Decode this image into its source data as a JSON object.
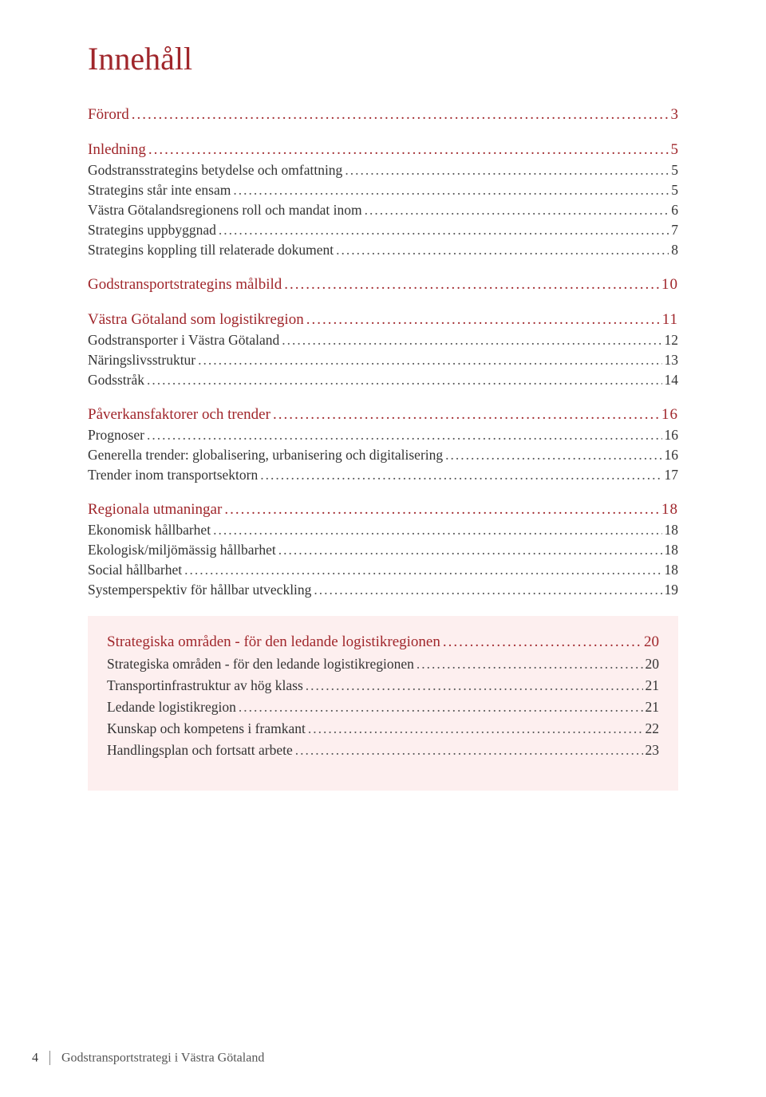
{
  "title": "Innehåll",
  "colors": {
    "accent": "#a0262b",
    "text": "#333333",
    "box_bg": "#fdefef",
    "page_bg": "#ffffff"
  },
  "dots": ".............................................................................................................................................................",
  "toc": [
    {
      "type": "section",
      "label": "Förord",
      "page": "3",
      "group_end": true
    },
    {
      "type": "section",
      "label": "Inledning",
      "page": "5"
    },
    {
      "type": "item",
      "label": "Godstransstrategins betydelse och omfattning",
      "page": "5"
    },
    {
      "type": "item",
      "label": "Strategins står inte ensam",
      "page": "5"
    },
    {
      "type": "item",
      "label": "Västra Götalandsregionens roll och mandat inom",
      "page": "6"
    },
    {
      "type": "item",
      "label": "Strategins uppbyggnad",
      "page": "7"
    },
    {
      "type": "item",
      "label": "Strategins koppling till relaterade dokument",
      "page": "8",
      "group_end": true
    },
    {
      "type": "section",
      "label": "Godstransportstrategins målbild",
      "page": "10",
      "spaced": true,
      "group_end": true
    },
    {
      "type": "section",
      "label": "Västra Götaland som logistikregion",
      "page": "11",
      "spaced": true
    },
    {
      "type": "item",
      "label": "Godstransporter i Västra Götaland",
      "page": "12"
    },
    {
      "type": "item",
      "label": "Näringslivsstruktur",
      "page": "13"
    },
    {
      "type": "item",
      "label": "Godsstråk",
      "page": "14",
      "group_end": true
    },
    {
      "type": "section",
      "label": "Påverkansfaktorer och trender",
      "page": "16",
      "spaced": true
    },
    {
      "type": "item",
      "label": "Prognoser",
      "page": "16"
    },
    {
      "type": "item",
      "label": "Generella trender: globalisering, urbanisering och digitalisering",
      "page": "16"
    },
    {
      "type": "item",
      "label": "Trender inom transportsektorn",
      "page": "17",
      "group_end": true
    },
    {
      "type": "section",
      "label": "Regionala utmaningar",
      "page": "18",
      "spaced": true
    },
    {
      "type": "item",
      "label": "Ekonomisk hållbarhet",
      "page": "18"
    },
    {
      "type": "item",
      "label": "Ekologisk/miljömässig hållbarhet",
      "page": "18"
    },
    {
      "type": "item",
      "label": "Social hållbarhet",
      "page": "18"
    },
    {
      "type": "item",
      "label": "Systemperspektiv för hållbar utveckling",
      "page": "19",
      "group_end": true
    }
  ],
  "box_toc": [
    {
      "type": "section",
      "label": "Strategiska områden - för den ledande logistikregionen",
      "page": "20"
    },
    {
      "type": "item",
      "label": "Strategiska områden - för den ledande logistikregionen",
      "page": "20"
    },
    {
      "type": "item",
      "label": "Transportinfrastruktur av hög klass",
      "page": "21"
    },
    {
      "type": "item",
      "label": "Ledande logistikregion",
      "page": "21"
    },
    {
      "type": "item",
      "label": "Kunskap och kompetens i framkant",
      "page": "22"
    },
    {
      "type": "item",
      "label": "Handlingsplan och fortsatt arbete",
      "page": "23"
    }
  ],
  "footer": {
    "page_number": "4",
    "text": "Godstransportstrategi i Västra Götaland"
  }
}
